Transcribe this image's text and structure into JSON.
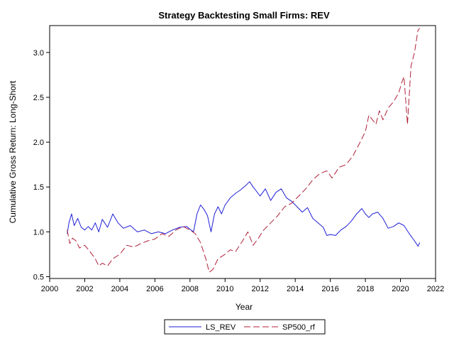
{
  "chart_data": {
    "type": "line",
    "title": "Strategy Backtesting Small Firms: REV",
    "xlabel": "Year",
    "ylabel": "Cumulative Gross Return: Long-Short",
    "xlim": [
      2000,
      2022
    ],
    "ylim": [
      0.48,
      3.3
    ],
    "xticks": [
      2000,
      2002,
      2004,
      2006,
      2008,
      2010,
      2012,
      2014,
      2016,
      2018,
      2020,
      2022
    ],
    "yticks": [
      0.5,
      1.0,
      1.5,
      2.0,
      2.5,
      3.0
    ],
    "ytick_labels": [
      "0.5",
      "1.0",
      "1.5",
      "2.0",
      "2.5",
      "3.0"
    ],
    "grid": false,
    "legend_position": "bottom-center",
    "series": [
      {
        "name": "LS_REV",
        "color": "#1f1fd6",
        "style": "solid",
        "x": [
          2001.0,
          2001.1,
          2001.25,
          2001.4,
          2001.6,
          2001.8,
          2002.0,
          2002.2,
          2002.4,
          2002.6,
          2002.8,
          2003.0,
          2003.3,
          2003.6,
          2003.9,
          2004.2,
          2004.6,
          2005.0,
          2005.4,
          2005.8,
          2006.2,
          2006.6,
          2007.0,
          2007.4,
          2007.8,
          2008.2,
          2008.4,
          2008.6,
          2008.8,
          2009.0,
          2009.2,
          2009.4,
          2009.6,
          2009.8,
          2010.0,
          2010.3,
          2010.6,
          2010.9,
          2011.2,
          2011.4,
          2011.6,
          2011.8,
          2012.0,
          2012.3,
          2012.6,
          2012.9,
          2013.2,
          2013.5,
          2013.8,
          2014.1,
          2014.4,
          2014.7,
          2015.0,
          2015.3,
          2015.6,
          2015.8,
          2016.0,
          2016.3,
          2016.6,
          2016.9,
          2017.2,
          2017.5,
          2017.8,
          2018.0,
          2018.2,
          2018.4,
          2018.7,
          2019.0,
          2019.3,
          2019.6,
          2019.9,
          2020.2,
          2020.5,
          2020.8,
          2021.0,
          2021.1
        ],
        "values": [
          0.98,
          1.1,
          1.2,
          1.07,
          1.15,
          1.05,
          1.02,
          1.06,
          1.02,
          1.1,
          1.0,
          1.14,
          1.05,
          1.2,
          1.1,
          1.04,
          1.07,
          1.0,
          1.02,
          0.98,
          1.0,
          0.98,
          1.02,
          1.05,
          1.06,
          1.0,
          1.2,
          1.3,
          1.25,
          1.18,
          1.0,
          1.2,
          1.28,
          1.2,
          1.3,
          1.38,
          1.43,
          1.47,
          1.52,
          1.56,
          1.5,
          1.45,
          1.4,
          1.48,
          1.35,
          1.44,
          1.48,
          1.38,
          1.34,
          1.28,
          1.22,
          1.27,
          1.15,
          1.1,
          1.05,
          0.96,
          0.97,
          0.96,
          1.02,
          1.06,
          1.12,
          1.2,
          1.26,
          1.2,
          1.16,
          1.2,
          1.22,
          1.15,
          1.04,
          1.06,
          1.1,
          1.07,
          0.98,
          0.9,
          0.84,
          0.88
        ]
      },
      {
        "name": "SP500_rf",
        "color": "#b0203a",
        "style": "dashed",
        "x": [
          2001.0,
          2001.15,
          2001.3,
          2001.5,
          2001.7,
          2002.0,
          2002.3,
          2002.6,
          2002.8,
          2003.0,
          2003.3,
          2003.6,
          2004.0,
          2004.4,
          2004.8,
          2005.2,
          2005.6,
          2006.0,
          2006.4,
          2006.8,
          2007.2,
          2007.6,
          2008.0,
          2008.3,
          2008.6,
          2008.9,
          2009.1,
          2009.3,
          2009.6,
          2010.0,
          2010.3,
          2010.6,
          2011.0,
          2011.3,
          2011.6,
          2011.9,
          2012.2,
          2012.6,
          2013.0,
          2013.4,
          2013.8,
          2014.2,
          2014.6,
          2015.0,
          2015.4,
          2015.8,
          2016.1,
          2016.5,
          2016.9,
          2017.3,
          2017.7,
          2018.0,
          2018.2,
          2018.6,
          2018.8,
          2019.0,
          2019.3,
          2019.6,
          2019.9,
          2020.1,
          2020.2,
          2020.4,
          2020.6,
          2020.8,
          2021.0,
          2021.1
        ],
        "values": [
          1.02,
          0.87,
          0.93,
          0.9,
          0.82,
          0.85,
          0.78,
          0.7,
          0.62,
          0.65,
          0.62,
          0.7,
          0.75,
          0.85,
          0.83,
          0.87,
          0.9,
          0.92,
          0.98,
          0.95,
          1.02,
          1.06,
          1.02,
          0.98,
          0.88,
          0.7,
          0.55,
          0.58,
          0.7,
          0.75,
          0.8,
          0.78,
          0.9,
          1.0,
          0.85,
          0.93,
          1.02,
          1.1,
          1.18,
          1.28,
          1.32,
          1.4,
          1.48,
          1.58,
          1.65,
          1.68,
          1.6,
          1.72,
          1.75,
          1.85,
          2.0,
          2.12,
          2.3,
          2.2,
          2.35,
          2.25,
          2.38,
          2.45,
          2.55,
          2.68,
          2.73,
          2.2,
          2.85,
          3.0,
          3.25,
          3.27
        ]
      }
    ]
  }
}
